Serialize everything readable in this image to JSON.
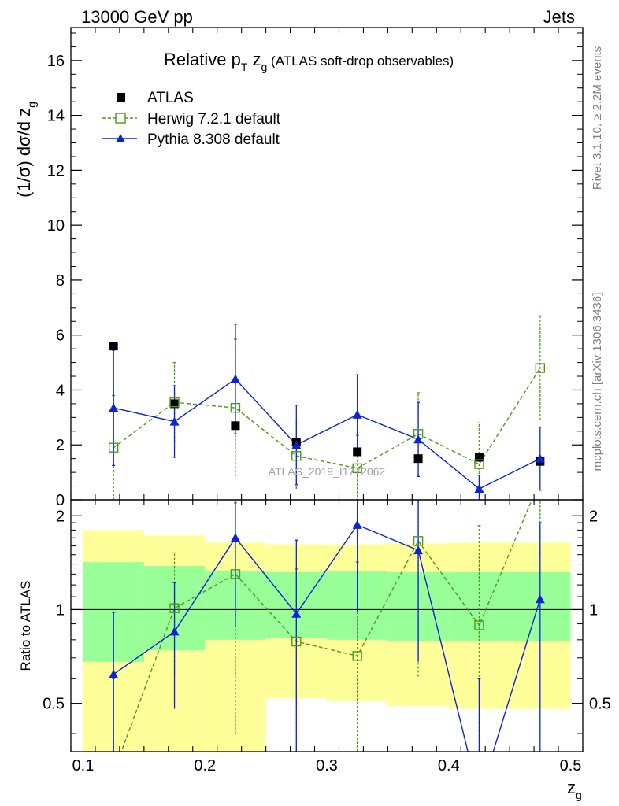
{
  "header": {
    "left": "13000 GeV pp",
    "right": "Jets"
  },
  "title": {
    "prefix": "Relative p",
    "sub_t": "T",
    "z": " z",
    "sub_g": "g",
    "suffix": " (ATLAS soft-drop observables)"
  },
  "side_text": {
    "rivet": "Rivet 3.1.10, ≥ 2.2M events",
    "mcplots": "mcplots.cern.ch [arXiv:1306.3436]"
  },
  "watermark": "ATLAS_2019_I1772062",
  "colors": {
    "atlas": "#000000",
    "herwig": "#4c9a1a",
    "pythia": "#0b22d6",
    "band_inner": "#99ff99",
    "band_outer": "#ffff99"
  },
  "chart_data": [
    {
      "type": "scatter",
      "panel": "main",
      "ylabel": "(1/σ) dσ/d z_g",
      "ylabel_parts": {
        "main": "(1/σ) dσ/d z",
        "sub": "g"
      },
      "xlim": [
        0.09,
        0.51
      ],
      "ylim": [
        0,
        17.2
      ],
      "yticks": [
        0,
        2,
        4,
        6,
        8,
        10,
        12,
        14,
        16
      ],
      "legend": {
        "placement": "top-left"
      },
      "x": [
        0.125,
        0.175,
        0.225,
        0.275,
        0.325,
        0.375,
        0.425,
        0.475
      ],
      "series": [
        {
          "name": "ATLAS",
          "style": "square-filled",
          "values": [
            5.6,
            3.5,
            2.7,
            2.1,
            1.75,
            1.5,
            1.55,
            1.4
          ],
          "err": [
            0,
            0,
            0,
            0,
            0,
            0,
            0,
            0
          ]
        },
        {
          "name": "Herwig 7.2.1 default",
          "style": "square-open-dashed",
          "values": [
            1.9,
            3.55,
            3.35,
            1.6,
            1.15,
            2.4,
            1.3,
            4.8
          ],
          "err": [
            1.9,
            1.45,
            2.5,
            1.2,
            1.2,
            1.5,
            1.5,
            1.9
          ]
        },
        {
          "name": "Pythia 8.308 default",
          "style": "triangle-solid",
          "values": [
            3.35,
            2.85,
            4.4,
            2.0,
            3.1,
            2.2,
            0.4,
            1.5
          ],
          "err": [
            2.1,
            1.3,
            2.0,
            1.45,
            1.45,
            1.35,
            0.5,
            1.15
          ]
        }
      ]
    },
    {
      "type": "line",
      "panel": "ratio",
      "ylabel": "Ratio to ATLAS",
      "xlabel": "z_g",
      "xlabel_parts": {
        "main": "z",
        "sub": "g"
      },
      "xlim": [
        0.09,
        0.51
      ],
      "ylim": [
        0.35,
        2.25
      ],
      "yticks": [
        0.5,
        1,
        2
      ],
      "ytick_labels": [
        "0.5",
        "1",
        "2"
      ],
      "xticks": [
        0.1,
        0.2,
        0.3,
        0.4,
        0.5
      ],
      "xtick_labels": [
        "0.1",
        "0.2",
        "0.3",
        "0.4",
        "0.5"
      ],
      "bins": [
        [
          0.1,
          0.15
        ],
        [
          0.15,
          0.2
        ],
        [
          0.2,
          0.25
        ],
        [
          0.25,
          0.3
        ],
        [
          0.3,
          0.35
        ],
        [
          0.35,
          0.4
        ],
        [
          0.4,
          0.45
        ],
        [
          0.45,
          0.5
        ]
      ],
      "band_inner": [
        [
          0.68,
          1.42
        ],
        [
          0.74,
          1.38
        ],
        [
          0.8,
          1.33
        ],
        [
          0.81,
          1.32
        ],
        [
          0.8,
          1.33
        ],
        [
          0.79,
          1.32
        ],
        [
          0.79,
          1.32
        ],
        [
          0.79,
          1.32
        ]
      ],
      "band_outer": [
        [
          0.3,
          1.8
        ],
        [
          0.3,
          1.73
        ],
        [
          0.3,
          1.64
        ],
        [
          0.52,
          1.62
        ],
        [
          0.51,
          1.62
        ],
        [
          0.49,
          1.63
        ],
        [
          0.48,
          1.64
        ],
        [
          0.48,
          1.64
        ]
      ],
      "x": [
        0.125,
        0.175,
        0.225,
        0.275,
        0.325,
        0.375,
        0.425,
        0.475
      ],
      "series": [
        {
          "name": "Herwig 7.2.1 default",
          "values": [
            0.3,
            1.01,
            1.3,
            0.79,
            0.71,
            1.66,
            0.89,
            2.6
          ],
          "err_lo": [
            0.3,
            0.39,
            0.9,
            0.56,
            0.71,
            1.05,
            0.89,
            1.1
          ],
          "err_hi": [
            0.3,
            0.51,
            0.9,
            0.56,
            0.71,
            1.05,
            0.97,
            1.1
          ]
        },
        {
          "name": "Pythia 8.308 default",
          "values": [
            0.62,
            0.85,
            1.7,
            0.97,
            1.87,
            1.55,
            0.25,
            1.08
          ],
          "err_lo": [
            0.4,
            0.37,
            0.82,
            0.7,
            0.89,
            0.87,
            0.35,
            0.82
          ],
          "err_hi": [
            0.36,
            0.37,
            0.82,
            0.7,
            0.89,
            0.87,
            0.35,
            0.82
          ]
        }
      ]
    }
  ]
}
